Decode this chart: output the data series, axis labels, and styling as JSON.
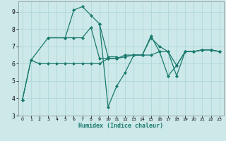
{
  "xlabel": "Humidex (Indice chaleur)",
  "background_color": "#cce8e8",
  "grid_color": "#aad4d4",
  "line_color": "#1a7a6e",
  "xlim": [
    -0.5,
    23.5
  ],
  "ylim": [
    3,
    9.6
  ],
  "xticks": [
    0,
    1,
    2,
    3,
    4,
    5,
    6,
    7,
    8,
    9,
    10,
    11,
    12,
    13,
    14,
    15,
    16,
    17,
    18,
    19,
    20,
    21,
    22,
    23
  ],
  "yticks": [
    3,
    4,
    5,
    6,
    7,
    8,
    9
  ],
  "lines": [
    {
      "x": [
        0,
        1,
        2,
        3,
        4,
        5,
        6,
        7,
        8,
        9,
        10,
        11,
        12,
        13,
        14,
        15,
        16,
        17,
        18,
        19,
        20,
        21,
        22,
        23
      ],
      "y": [
        3.9,
        6.2,
        6.0,
        6.0,
        6.0,
        6.0,
        6.0,
        6.0,
        6.0,
        6.0,
        6.3,
        6.3,
        6.4,
        6.5,
        6.5,
        6.5,
        6.7,
        6.7,
        5.9,
        6.7,
        6.7,
        6.8,
        6.8,
        6.7
      ]
    },
    {
      "x": [
        0,
        1,
        3,
        5,
        6,
        7,
        8,
        9,
        10,
        11
      ],
      "y": [
        3.9,
        6.2,
        7.5,
        7.5,
        9.1,
        9.3,
        8.8,
        8.3,
        6.4,
        6.4
      ]
    },
    {
      "x": [
        3,
        5,
        6,
        7,
        8,
        9,
        10,
        11,
        12,
        13,
        14,
        15,
        16,
        17,
        18,
        19,
        20,
        21,
        22,
        23
      ],
      "y": [
        7.5,
        7.5,
        7.5,
        7.5,
        8.1,
        6.3,
        6.3,
        6.3,
        6.5,
        6.5,
        6.5,
        7.5,
        7.0,
        6.7,
        5.3,
        6.7,
        6.7,
        6.8,
        6.8,
        6.7
      ]
    },
    {
      "x": [
        9,
        10,
        11,
        12,
        13,
        14,
        15,
        16,
        17,
        18,
        19,
        20,
        21,
        22,
        23
      ],
      "y": [
        8.3,
        3.5,
        4.7,
        5.5,
        6.5,
        6.5,
        7.6,
        6.7,
        5.3,
        5.9,
        6.7,
        6.7,
        6.8,
        6.8,
        6.7
      ]
    }
  ]
}
